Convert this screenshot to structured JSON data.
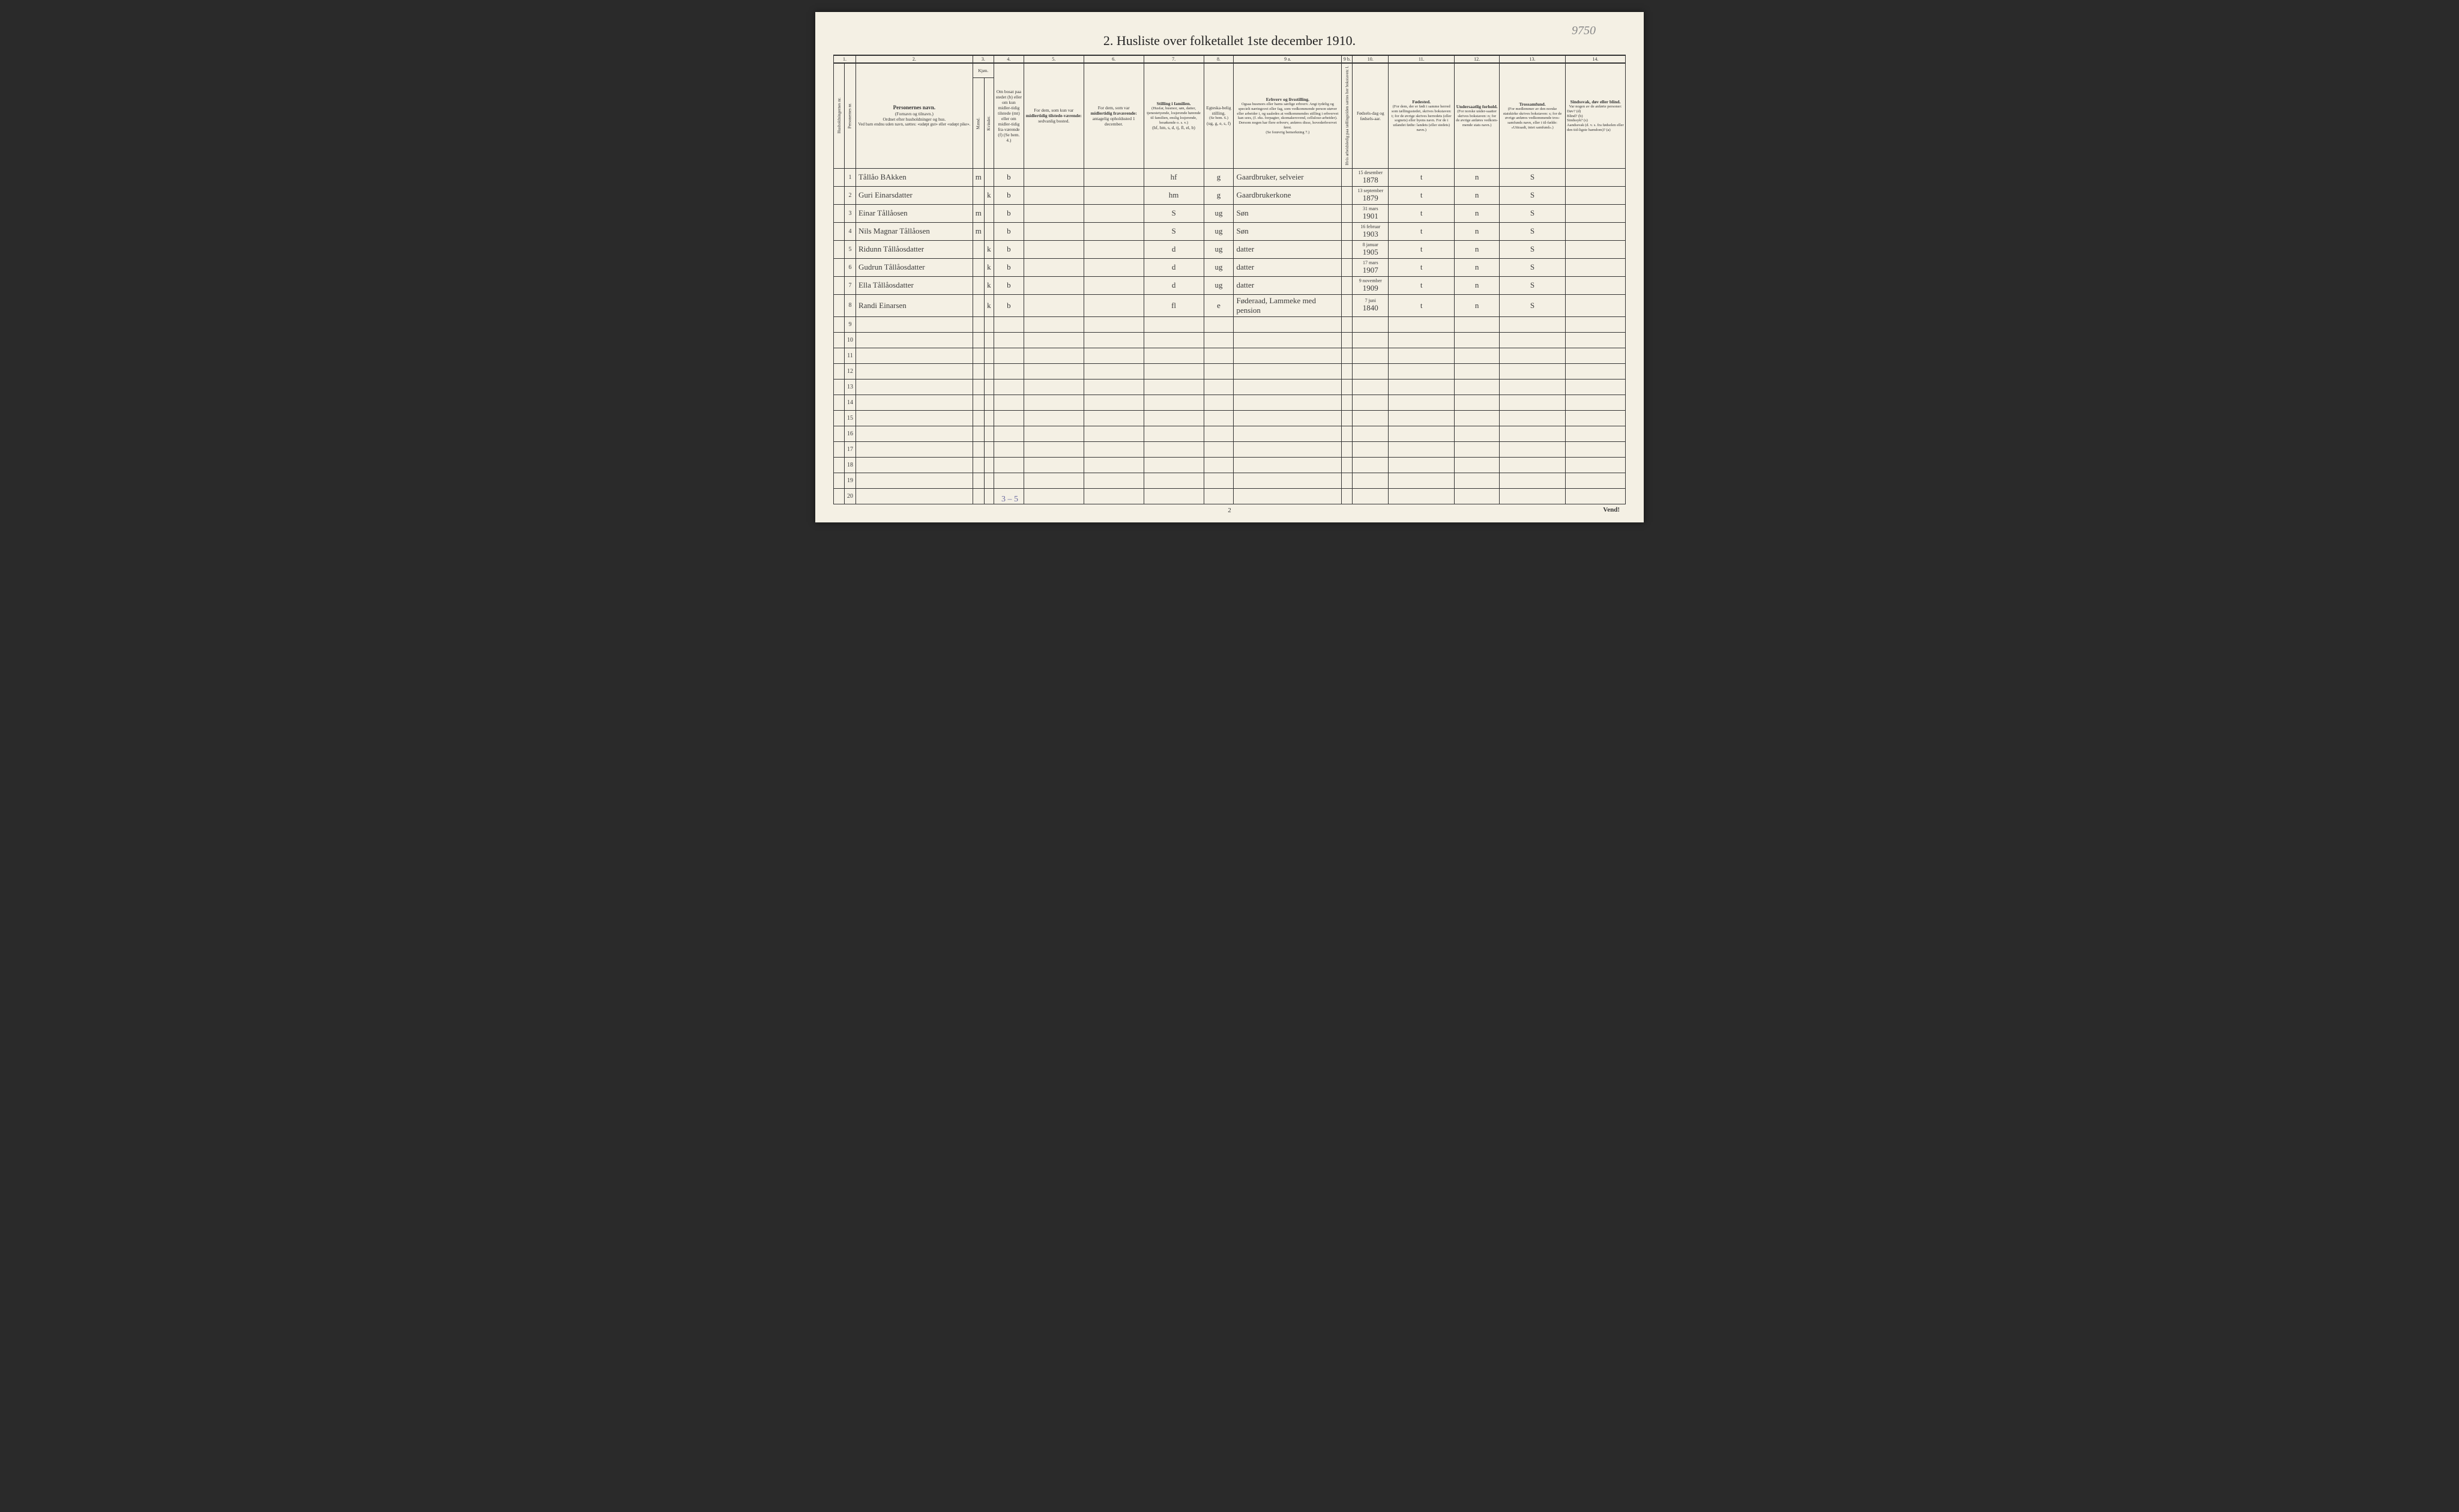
{
  "handwritten_corner": "9750",
  "title": "2.  Husliste over folketallet 1ste december 1910.",
  "col_numbers": [
    "1.",
    "2.",
    "3.",
    "4.",
    "5.",
    "6.",
    "7.",
    "8.",
    "9 a.",
    "9 b.",
    "10.",
    "11.",
    "12.",
    "13.",
    "14."
  ],
  "headers": {
    "h1": "Husholdningernes nr.",
    "h2": "Personernes nr.",
    "h3_title": "Personernes navn.",
    "h3_sub1": "(Fornavn og tilnavn.)",
    "h3_sub2": "Ordnet efter husholdninger og hus.",
    "h3_sub3": "Ved barn endnu uden navn, sættes: «udøpt gut» eller «udøpt pike».",
    "kjon": "Kjøn.",
    "maend": "Mænd.",
    "kvinder": "Kvinder.",
    "mk": "m.  k.",
    "h4": "Om bosat paa stedet (b) eller om kun midler-tidig tilstede (mt) eller om midler-tidig fra-værende (f) (Se bem. 4.)",
    "h5_a": "For dem, som kun var",
    "h5_b": "midlertidig tilstede-værende:",
    "h5_c": "sedvanlig bosted.",
    "h6_a": "For dem, som var",
    "h6_b": "midlertidig fraværende:",
    "h6_c": "antagelig opholdssted 1 december.",
    "h7_a": "Stilling i familien.",
    "h7_b": "(Husfar, husmor, søn, datter, tjenestetyende, losjerende hørende til familien, enslig losjerende, besøkende o. s. v.)",
    "h7_c": "(hf, hm, s, d, tj, fl, el, b)",
    "h8_a": "Egteska-belig stilling.",
    "h8_b": "(Se bem. 6.)",
    "h8_c": "(ug, g, e, s, f)",
    "h9a_a": "Erhverv og livsstilling.",
    "h9a_b": "Ogsaa husmors eller barns særlige erhverv. Angi tydelig og specielt næringsvei eller fag, som vedkommende person utøver eller arbeider i, og saaledes at vedkommendes stilling i erhvervet kan sees, (f. eks. forpagter, skomakersvend, cellulose-arbeider). Dersom nogen har flere erhverv, anføres disse, hovederhvervet først.",
    "h9a_c": "(Se forøvrig bemerkning 7.)",
    "h9b": "Hvis arbeidsledig paa tællingstiden sættes her bokstaven: l.",
    "h10_a": "Fødsels-dag og fødsels-aar.",
    "h11_a": "Fødested.",
    "h11_b": "(For dem, der er født i samme herred som tællingsstedet, skrives bokstaven: t; for de øvrige skrives herredets (eller sognets) eller byens navn. For de i utlandet fødte: landets (eller stedets) navn.)",
    "h12_a": "Undersaatlig forhold.",
    "h12_b": "(For norske under-saatter skrives bokstaven: n; for de øvrige anføres vedkom-mende stats navn.)",
    "h13_a": "Trossamfund.",
    "h13_b": "(For medlemmer av den norske statskirke skrives bokstaven: s; for de øvrige anføres vedkommende tros-samfunds navn, eller i til-fælde: «Uttraadt, intet samfund».)",
    "h14_a": "Sindssvak, døv eller blind.",
    "h14_b": "Var nogen av de anførte personer:",
    "h14_c": "Døv? (d)\nBlind? (b)\nSindssyk? (s)\nAandssvak (d. v. s. fra fødselen eller den tid-ligste barndom)? (a)"
  },
  "rows": [
    {
      "n": "1",
      "name": "Tållåo BAkken",
      "sex_m": "m",
      "sex_k": "",
      "res": "b",
      "fam": "hf",
      "mar": "g",
      "occ": "Gaardbruker, selveier",
      "dob_top": "15 desember",
      "dob": "1878",
      "birthplace": "t",
      "nat": "n",
      "rel": "S"
    },
    {
      "n": "2",
      "name": "Guri Einarsdatter",
      "sex_m": "",
      "sex_k": "k",
      "res": "b",
      "fam": "hm",
      "mar": "g",
      "occ": "Gaardbrukerkone",
      "dob_top": "13 september",
      "dob": "1879",
      "birthplace": "t",
      "nat": "n",
      "rel": "S"
    },
    {
      "n": "3",
      "name": "Einar Tållåosen",
      "sex_m": "m",
      "sex_k": "",
      "res": "b",
      "fam": "S",
      "mar": "ug",
      "occ": "Søn",
      "dob_top": "31 mars",
      "dob": "1901",
      "birthplace": "t",
      "nat": "n",
      "rel": "S"
    },
    {
      "n": "4",
      "name": "Nils Magnar Tållåosen",
      "sex_m": "m",
      "sex_k": "",
      "res": "b",
      "fam": "S",
      "mar": "ug",
      "occ": "Søn",
      "dob_top": "16 februar",
      "dob": "1903",
      "birthplace": "t",
      "nat": "n",
      "rel": "S"
    },
    {
      "n": "5",
      "name": "Ridunn Tållåosdatter",
      "sex_m": "",
      "sex_k": "k",
      "res": "b",
      "fam": "d",
      "mar": "ug",
      "occ": "datter",
      "dob_top": "8 januar",
      "dob": "1905",
      "birthplace": "t",
      "nat": "n",
      "rel": "S"
    },
    {
      "n": "6",
      "name": "Gudrun Tållåosdatter",
      "sex_m": "",
      "sex_k": "k",
      "res": "b",
      "fam": "d",
      "mar": "ug",
      "occ": "datter",
      "dob_top": "17 mars",
      "dob": "1907",
      "birthplace": "t",
      "nat": "n",
      "rel": "S"
    },
    {
      "n": "7",
      "name": "Ella Tållåosdatter",
      "sex_m": "",
      "sex_k": "k",
      "res": "b",
      "fam": "d",
      "mar": "ug",
      "occ": "datter",
      "dob_top": "9 november",
      "dob": "1909",
      "birthplace": "t",
      "nat": "n",
      "rel": "S"
    },
    {
      "n": "8",
      "name": "Randi Einarsen",
      "sex_m": "",
      "sex_k": "k",
      "res": "b",
      "fam": "fl",
      "mar": "e",
      "occ": "Føderaad, Lammeke med pension",
      "dob_top": "7 juni",
      "dob": "1840",
      "birthplace": "t",
      "nat": "n",
      "rel": "S"
    }
  ],
  "empty_rows": [
    "9",
    "10",
    "11",
    "12",
    "13",
    "14",
    "15",
    "16",
    "17",
    "18",
    "19",
    "20"
  ],
  "page_number": "2",
  "vend": "Vend!",
  "pencil_bottom": "3 – 5",
  "colors": {
    "paper": "#f4f0e4",
    "ink": "#333333",
    "handwriting": "#3a3a3a",
    "pencil": "#888888",
    "background": "#2a2a2a"
  }
}
